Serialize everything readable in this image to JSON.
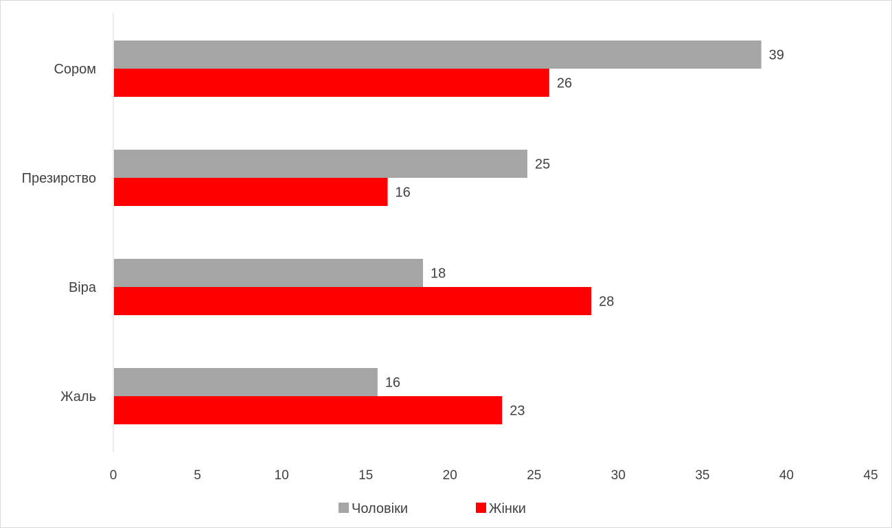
{
  "chart_data": {
    "type": "bar",
    "orientation": "horizontal",
    "categories": [
      "Сором",
      "Презирство",
      "Віра",
      "Жаль"
    ],
    "series": [
      {
        "name": "Чоловіки",
        "color": "#a5a5a5",
        "values": [
          38.5,
          24.6,
          18.4,
          15.7
        ],
        "labels": [
          "39",
          "25",
          "18",
          "16"
        ]
      },
      {
        "name": "Жінки",
        "color": "#ff0000",
        "values": [
          25.9,
          16.3,
          28.4,
          23.1
        ],
        "labels": [
          "26",
          "16",
          "28",
          "23"
        ]
      }
    ],
    "xlim": [
      0,
      45
    ],
    "xticks": [
      "0",
      "5",
      "10",
      "15",
      "20",
      "25",
      "30",
      "35",
      "40",
      "45"
    ],
    "xtick_values": [
      0,
      5,
      10,
      15,
      20,
      25,
      30,
      35,
      40,
      45
    ],
    "title": "",
    "xlabel": "",
    "ylabel": "",
    "grid": false,
    "legend_position": "bottom"
  }
}
